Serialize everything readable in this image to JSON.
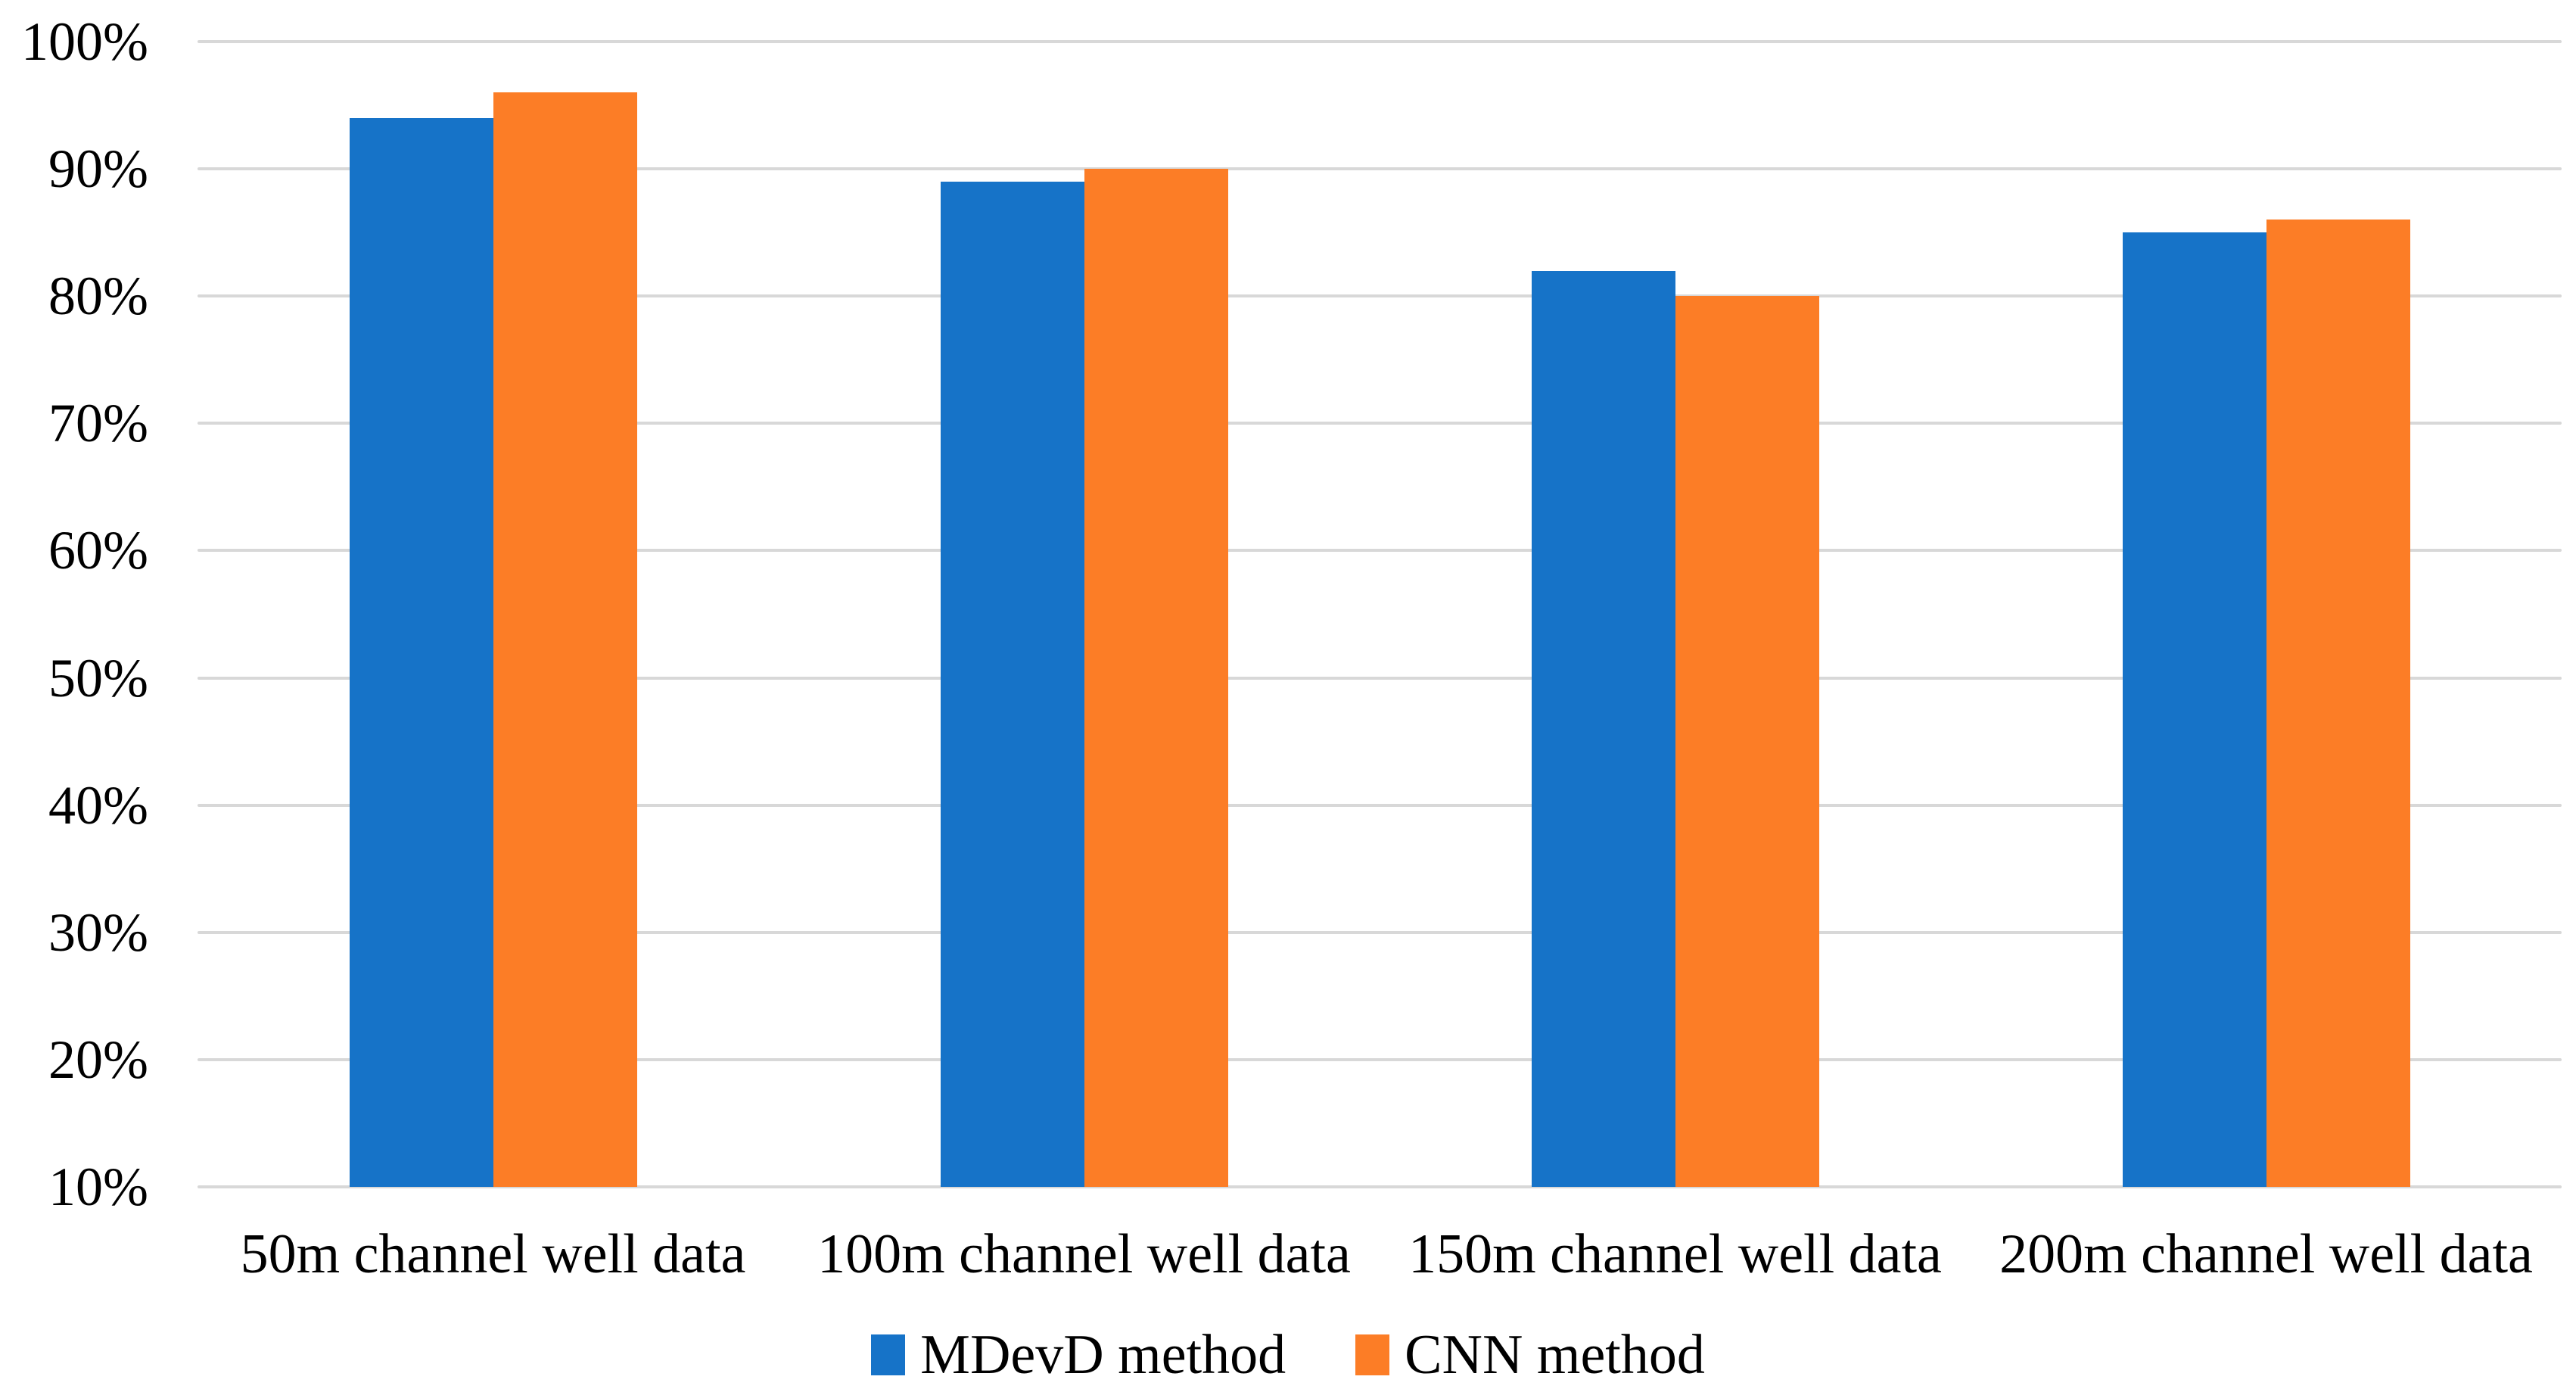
{
  "chart_data": {
    "type": "bar",
    "title": "",
    "categories": [
      "50m channel well data",
      "100m channel well data",
      "150m channel well data",
      "200m channel well data"
    ],
    "series": [
      {
        "name": "MDevD method",
        "color": "#1673C8",
        "values": [
          94,
          89,
          82,
          85
        ]
      },
      {
        "name": "CNN method",
        "color": "#FC7D26",
        "values": [
          96,
          90,
          80,
          86
        ]
      }
    ],
    "y_axis": {
      "min": 10,
      "max": 100,
      "step": 10,
      "tick_suffix": "%",
      "tick_labels": [
        "10%",
        "20%",
        "30%",
        "40%",
        "50%",
        "60%",
        "70%",
        "80%",
        "90%",
        "100%"
      ]
    },
    "x_axis_label": "",
    "y_axis_label": "",
    "grid": true,
    "gridline_color": "#D8D8D8",
    "legend_position": "bottom",
    "background_color": "#FFFFFF",
    "text_color": "#000000"
  }
}
